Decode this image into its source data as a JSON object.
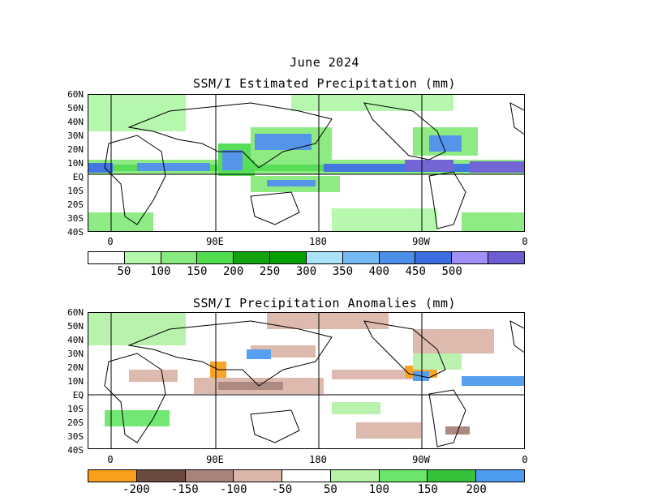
{
  "titles": {
    "month": "June 2024",
    "panel1": "SSM/I Estimated Precipitation (mm)",
    "panel2": "SSM/I Precipitation Anomalies (mm)"
  },
  "lat_labels": [
    "60N",
    "50N",
    "40N",
    "30N",
    "20N",
    "10N",
    "EQ",
    "10S",
    "20S",
    "30S",
    "40S"
  ],
  "lon_labels": [
    "0",
    "90E",
    "180",
    "90W",
    "0"
  ],
  "precip_scale": {
    "colors": [
      "#ffffff",
      "#b3f7aa",
      "#88ea7e",
      "#4fdc4f",
      "#12a30e",
      "#00a000",
      "#abe3fb",
      "#76b8f4",
      "#4b8fe8",
      "#3b6fe0",
      "#a08ff5",
      "#6c5ed2"
    ],
    "labels": [
      "50",
      "100",
      "150",
      "200",
      "250",
      "300",
      "350",
      "400",
      "450",
      "500"
    ]
  },
  "anomaly_scale": {
    "colors": [
      "#f8a01c",
      "#6d4a3f",
      "#a8837b",
      "#dcb6aa",
      "#ffffff",
      "#b5f2a8",
      "#6be66b",
      "#33c23a",
      "#4d9bf0"
    ],
    "labels": [
      "-200",
      "-150",
      "-100",
      "-50",
      "50",
      "100",
      "150",
      "200"
    ]
  },
  "colors": {
    "land_outline": "#000000",
    "grid": "#000000"
  }
}
